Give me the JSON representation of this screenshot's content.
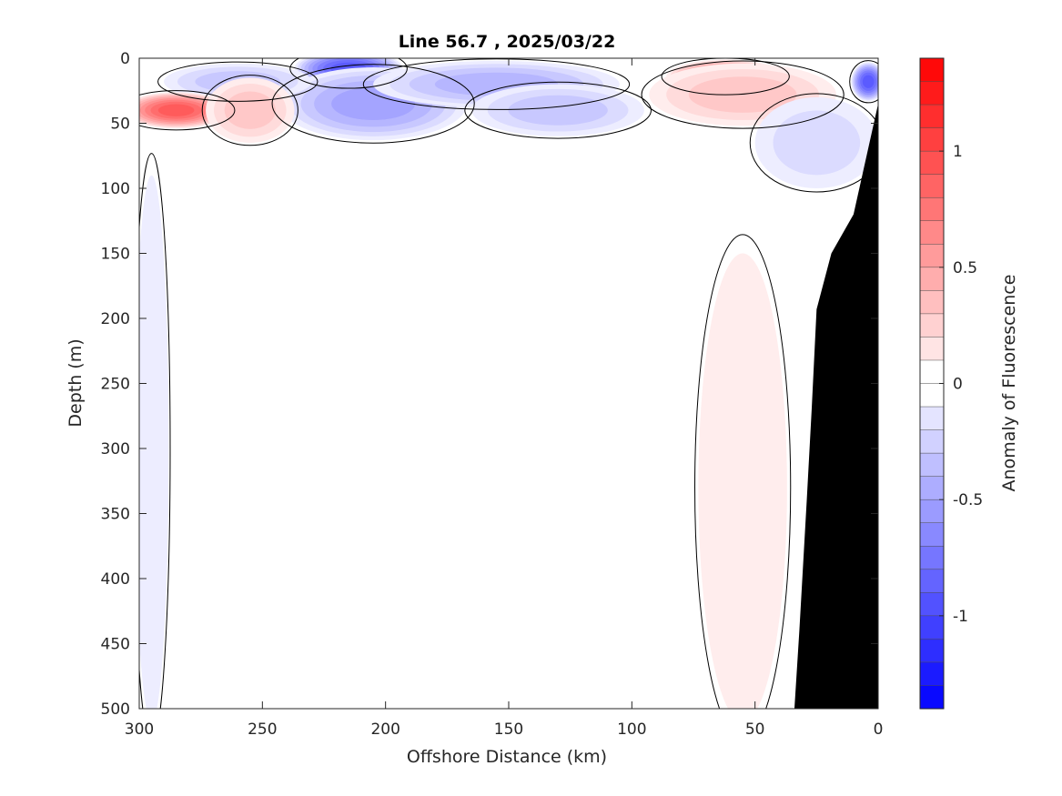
{
  "chart_data": {
    "type": "heatmap",
    "subtype": "filled-contour-section",
    "title": "Line 56.7 , 2025/03/22",
    "xlabel": "Offshore Distance (km)",
    "ylabel": "Depth (m)",
    "xlim": [
      300,
      0
    ],
    "x_reversed": true,
    "ylim": [
      0,
      500
    ],
    "y_reversed": true,
    "x_ticks": [
      300,
      250,
      200,
      150,
      100,
      50,
      0
    ],
    "y_ticks": [
      0,
      50,
      100,
      150,
      200,
      250,
      300,
      350,
      400,
      450,
      500
    ],
    "grid": false,
    "colorbar": {
      "label": "Anomaly of Fluorescence",
      "range": [
        -1.4,
        1.4
      ],
      "step": 0.1,
      "ticks": [
        -1,
        -0.5,
        0,
        0.5,
        1
      ],
      "low_color": "#0000ff",
      "mid_color": "#ffffff",
      "high_color": "#ff0000"
    },
    "zero_contour_line_color": "#000000",
    "bathymetry_color": "#000000",
    "bathymetry": [
      [
        34,
        500
      ],
      [
        32,
        440
      ],
      [
        29,
        340
      ],
      [
        27,
        270
      ],
      [
        25,
        193
      ],
      [
        19,
        150
      ],
      [
        10,
        120
      ],
      [
        0,
        35
      ]
    ],
    "features": [
      {
        "x": 215,
        "z": 8,
        "value": -0.95,
        "rx": 22,
        "rz": 14
      },
      {
        "x": 205,
        "z": 35,
        "value": -0.5,
        "rx": 38,
        "rz": 28
      },
      {
        "x": 155,
        "z": 20,
        "value": -0.4,
        "rx": 50,
        "rz": 18
      },
      {
        "x": 260,
        "z": 18,
        "value": -0.35,
        "rx": 30,
        "rz": 14
      },
      {
        "x": 130,
        "z": 40,
        "value": -0.3,
        "rx": 35,
        "rz": 20
      },
      {
        "x": 285,
        "z": 40,
        "value": 0.85,
        "rx": 22,
        "rz": 14
      },
      {
        "x": 255,
        "z": 40,
        "value": 0.35,
        "rx": 18,
        "rz": 25
      },
      {
        "x": 62,
        "z": 14,
        "value": 0.8,
        "rx": 24,
        "rz": 13
      },
      {
        "x": 55,
        "z": 28,
        "value": 0.35,
        "rx": 38,
        "rz": 24
      },
      {
        "x": 4,
        "z": 18,
        "value": -0.9,
        "rx": 7,
        "rz": 15
      },
      {
        "x": 25,
        "z": 65,
        "value": -0.2,
        "rx": 25,
        "rz": 35
      },
      {
        "x": 55,
        "z": 330,
        "value": 0.12,
        "rx": 18,
        "rz": 180
      },
      {
        "x": 295,
        "z": 300,
        "value": -0.12,
        "rx": 7,
        "rz": 210
      }
    ]
  }
}
